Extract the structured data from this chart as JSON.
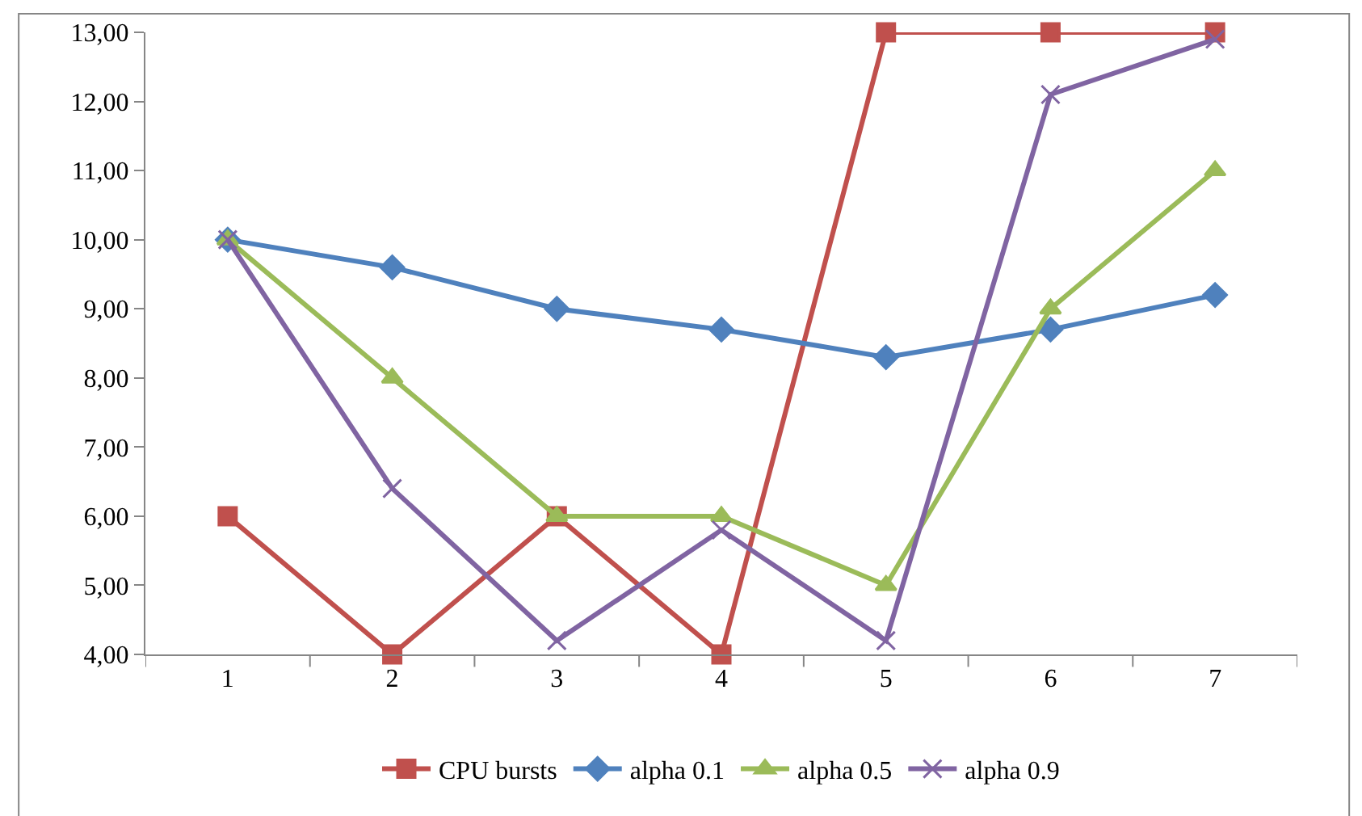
{
  "chart_data": {
    "type": "line",
    "categories": [
      "1",
      "2",
      "3",
      "4",
      "5",
      "6",
      "7"
    ],
    "series": [
      {
        "name": "CPU bursts",
        "color": "#c0504d",
        "marker": "square",
        "values": [
          6,
          4,
          6,
          4,
          13,
          13,
          13
        ]
      },
      {
        "name": "alpha 0.1",
        "color": "#4f81bd",
        "marker": "diamond",
        "values": [
          10,
          9.6,
          9.0,
          8.7,
          8.3,
          8.7,
          9.2
        ]
      },
      {
        "name": "alpha 0.5",
        "color": "#9bbb59",
        "marker": "triangle",
        "values": [
          10,
          8,
          6,
          6,
          5,
          9,
          11
        ]
      },
      {
        "name": "alpha 0.9",
        "color": "#8064a2",
        "marker": "cross",
        "values": [
          10,
          6.4,
          4.2,
          5.8,
          4.2,
          12.1,
          12.9
        ]
      }
    ],
    "ylim": [
      4,
      13
    ],
    "yticks": [
      {
        "value": 4,
        "label": "4,00"
      },
      {
        "value": 5,
        "label": "5,00"
      },
      {
        "value": 6,
        "label": "6,00"
      },
      {
        "value": 7,
        "label": "7,00"
      },
      {
        "value": 8,
        "label": "8,00"
      },
      {
        "value": 9,
        "label": "9,00"
      },
      {
        "value": 10,
        "label": "10,00"
      },
      {
        "value": 11,
        "label": "11,00"
      },
      {
        "value": 12,
        "label": "12,00"
      },
      {
        "value": 13,
        "label": "13,00"
      }
    ],
    "grid": false,
    "legend": "bottom",
    "line_style": "solid"
  }
}
